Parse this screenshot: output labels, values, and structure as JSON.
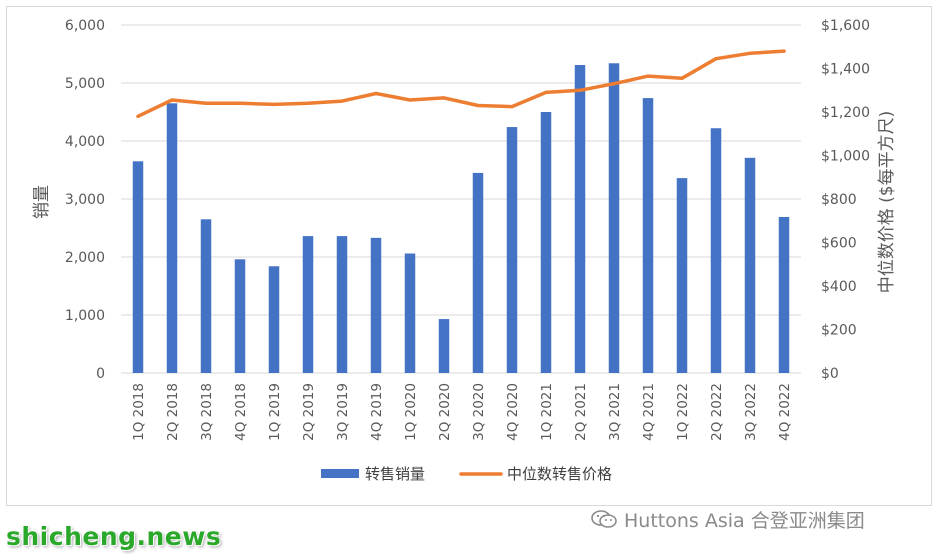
{
  "chart_data": {
    "type": "bar+line",
    "categories": [
      "1Q 2018",
      "2Q 2018",
      "3Q 2018",
      "4Q 2018",
      "1Q 2019",
      "2Q 2019",
      "3Q 2019",
      "4Q 2019",
      "1Q 2020",
      "2Q 2020",
      "3Q 2020",
      "4Q 2020",
      "1Q 2021",
      "2Q 2021",
      "3Q 2021",
      "4Q 2021",
      "1Q 2022",
      "2Q 2022",
      "3Q 2022",
      "4Q 2022"
    ],
    "series": [
      {
        "name": "转售销量",
        "type": "bar",
        "axis": "left",
        "color": "#4472c4",
        "values": [
          3650,
          4650,
          2650,
          1960,
          1840,
          2360,
          2360,
          2330,
          2060,
          930,
          3450,
          4240,
          4500,
          5310,
          5340,
          4740,
          3360,
          4220,
          3710,
          2690
        ]
      },
      {
        "name": "中位数转售价格",
        "type": "line",
        "axis": "right",
        "color": "#ed7d31",
        "values": [
          1180,
          1255,
          1240,
          1240,
          1235,
          1240,
          1250,
          1285,
          1255,
          1265,
          1230,
          1225,
          1290,
          1300,
          1330,
          1365,
          1355,
          1445,
          1470,
          1480
        ]
      }
    ],
    "y_left": {
      "label": "销量",
      "min": 0,
      "max": 6000,
      "ticks": [
        "0",
        "1,000",
        "2,000",
        "3,000",
        "4,000",
        "5,000",
        "6,000"
      ]
    },
    "y_right": {
      "label": "中位数价格 ($每平方尺)",
      "min": 0,
      "max": 1600,
      "ticks": [
        "$0",
        "$200",
        "$400",
        "$600",
        "$800",
        "$1,000",
        "$1,200",
        "$1,400",
        "$1,600"
      ]
    },
    "grid": true,
    "legend": "bottom"
  },
  "watermarks": {
    "left": "shicheng.news",
    "right": "Huttons Asia 合登亚洲集团"
  }
}
